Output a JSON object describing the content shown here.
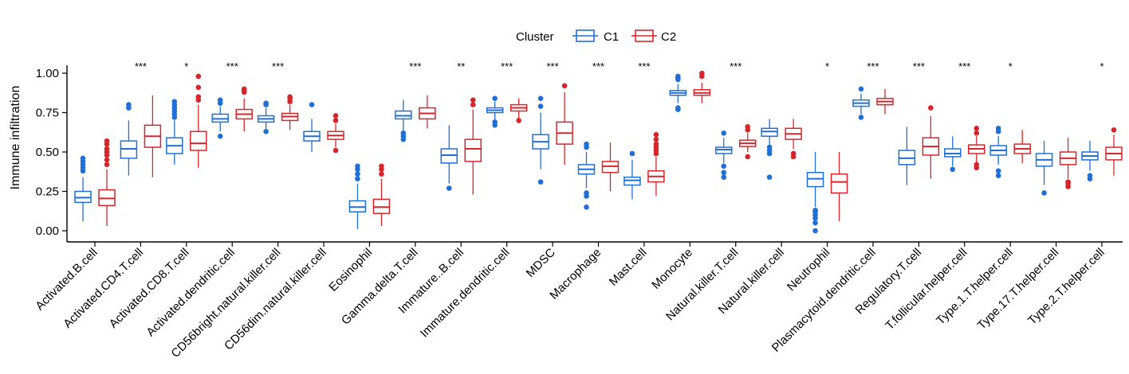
{
  "chart_data": {
    "type": "boxplot",
    "title": "",
    "xlabel": "",
    "ylabel": "Immune infiltration",
    "ylim": [
      0,
      1.05
    ],
    "yticks": [
      "0.00",
      "0.25",
      "0.50",
      "0.75",
      "1.00"
    ],
    "yticks_values": [
      0,
      0.25,
      0.5,
      0.75,
      1.0
    ],
    "legend": {
      "title": "Cluster",
      "position": "top-center",
      "entries": [
        "C1",
        "C2"
      ]
    },
    "colors": {
      "C1": "#1f6fd6",
      "C2": "#d7262b"
    },
    "categories": [
      "Activated.B.cell",
      "Activated.CD4.T.cell",
      "Activated.CD8.T.cell",
      "Activated.dendritic.cell",
      "CD56bright.natural.killer.cell",
      "CD56dim.natural.killer.cell",
      "Eosinophil",
      "Gamma.delta.T.cell",
      "Immature..B.cell",
      "Immature.dendritic.cell",
      "MDSC",
      "Macrophage",
      "Mast.cell",
      "Monocyte",
      "Natural.killer.T.cell",
      "Natural.killer.cell",
      "Neutrophil",
      "Plasmacytoid.dendritic.cell",
      "Regulatory.T.cell",
      "T.follicular.helper.cell",
      "Type.1.T.helper.cell",
      "Type.17.T.helper.cell",
      "Type.2.T.helper.cell"
    ],
    "significance": [
      "",
      "***",
      "*",
      "***",
      "***",
      "",
      "",
      "***",
      "**",
      "***",
      "***",
      "***",
      "***",
      "",
      "***",
      "",
      "*",
      "***",
      "***",
      "***",
      "*",
      "",
      "*"
    ],
    "series": [
      {
        "name": "C1",
        "boxes": [
          {
            "min": 0.06,
            "q1": 0.18,
            "median": 0.21,
            "q3": 0.25,
            "max": 0.34,
            "outliers": [
              0.38,
              0.4,
              0.42,
              0.44,
              0.46
            ]
          },
          {
            "min": 0.35,
            "q1": 0.46,
            "median": 0.52,
            "q3": 0.57,
            "max": 0.7,
            "outliers": [
              0.78,
              0.8
            ]
          },
          {
            "min": 0.42,
            "q1": 0.49,
            "median": 0.54,
            "q3": 0.59,
            "max": 0.7,
            "outliers": [
              0.72,
              0.74,
              0.76,
              0.78,
              0.8,
              0.82
            ]
          },
          {
            "min": 0.63,
            "q1": 0.69,
            "median": 0.71,
            "q3": 0.74,
            "max": 0.79,
            "outliers": [
              0.6,
              0.81,
              0.83
            ]
          },
          {
            "min": 0.64,
            "q1": 0.69,
            "median": 0.71,
            "q3": 0.73,
            "max": 0.78,
            "outliers": [
              0.63,
              0.8,
              0.81
            ]
          },
          {
            "min": 0.5,
            "q1": 0.57,
            "median": 0.6,
            "q3": 0.63,
            "max": 0.71,
            "outliers": [
              0.8
            ]
          },
          {
            "min": 0.01,
            "q1": 0.12,
            "median": 0.15,
            "q3": 0.19,
            "max": 0.3,
            "outliers": [
              0.33,
              0.36,
              0.39,
              0.41
            ]
          },
          {
            "min": 0.63,
            "q1": 0.71,
            "median": 0.73,
            "q3": 0.76,
            "max": 0.83,
            "outliers": [
              0.58,
              0.6,
              0.62
            ]
          },
          {
            "min": 0.3,
            "q1": 0.43,
            "median": 0.48,
            "q3": 0.52,
            "max": 0.67,
            "outliers": [
              0.27
            ]
          },
          {
            "min": 0.7,
            "q1": 0.75,
            "median": 0.765,
            "q3": 0.78,
            "max": 0.82,
            "outliers": [
              0.67,
              0.69,
              0.84
            ]
          },
          {
            "min": 0.39,
            "q1": 0.52,
            "median": 0.565,
            "q3": 0.61,
            "max": 0.75,
            "outliers": [
              0.31,
              0.79,
              0.84
            ]
          },
          {
            "min": 0.27,
            "q1": 0.36,
            "median": 0.39,
            "q3": 0.42,
            "max": 0.5,
            "outliers": [
              0.15,
              0.22,
              0.24,
              0.53,
              0.55
            ]
          },
          {
            "min": 0.2,
            "q1": 0.29,
            "median": 0.32,
            "q3": 0.34,
            "max": 0.45,
            "outliers": [
              0.49
            ]
          },
          {
            "min": 0.81,
            "q1": 0.86,
            "median": 0.875,
            "q3": 0.89,
            "max": 0.93,
            "outliers": [
              0.77,
              0.78,
              0.96,
              0.97,
              0.98
            ]
          },
          {
            "min": 0.43,
            "q1": 0.49,
            "median": 0.515,
            "q3": 0.53,
            "max": 0.59,
            "outliers": [
              0.34,
              0.37,
              0.41,
              0.62
            ]
          },
          {
            "min": 0.54,
            "q1": 0.6,
            "median": 0.63,
            "q3": 0.65,
            "max": 0.71,
            "outliers": [
              0.34,
              0.49,
              0.51,
              0.53
            ]
          },
          {
            "min": 0.15,
            "q1": 0.28,
            "median": 0.33,
            "q3": 0.37,
            "max": 0.5,
            "outliers": [
              0.0,
              0.05,
              0.08,
              0.1,
              0.12,
              0.13
            ]
          },
          {
            "min": 0.74,
            "q1": 0.79,
            "median": 0.81,
            "q3": 0.83,
            "max": 0.87,
            "outliers": [
              0.72,
              0.9
            ]
          },
          {
            "min": 0.29,
            "q1": 0.42,
            "median": 0.46,
            "q3": 0.51,
            "max": 0.66,
            "outliers": []
          },
          {
            "min": 0.41,
            "q1": 0.47,
            "median": 0.49,
            "q3": 0.52,
            "max": 0.6,
            "outliers": [
              0.39
            ]
          },
          {
            "min": 0.42,
            "q1": 0.48,
            "median": 0.51,
            "q3": 0.54,
            "max": 0.6,
            "outliers": [
              0.35,
              0.38,
              0.63,
              0.65
            ]
          },
          {
            "min": 0.29,
            "q1": 0.41,
            "median": 0.45,
            "q3": 0.49,
            "max": 0.57,
            "outliers": [
              0.24
            ]
          },
          {
            "min": 0.38,
            "q1": 0.45,
            "median": 0.475,
            "q3": 0.5,
            "max": 0.57,
            "outliers": [
              0.33,
              0.35
            ]
          }
        ]
      },
      {
        "name": "C2",
        "boxes": [
          {
            "min": 0.03,
            "q1": 0.16,
            "median": 0.205,
            "q3": 0.26,
            "max": 0.39,
            "outliers": [
              0.42,
              0.45,
              0.48,
              0.5,
              0.52,
              0.55,
              0.57
            ]
          },
          {
            "min": 0.34,
            "q1": 0.53,
            "median": 0.6,
            "q3": 0.67,
            "max": 0.86,
            "outliers": []
          },
          {
            "min": 0.4,
            "q1": 0.51,
            "median": 0.555,
            "q3": 0.63,
            "max": 0.8,
            "outliers": [
              0.83,
              0.85,
              0.91,
              0.98
            ]
          },
          {
            "min": 0.63,
            "q1": 0.71,
            "median": 0.74,
            "q3": 0.77,
            "max": 0.84,
            "outliers": [
              0.88,
              0.89,
              0.9
            ]
          },
          {
            "min": 0.64,
            "q1": 0.7,
            "median": 0.725,
            "q3": 0.745,
            "max": 0.8,
            "outliers": [
              0.82,
              0.84,
              0.85
            ]
          },
          {
            "min": 0.53,
            "q1": 0.58,
            "median": 0.605,
            "q3": 0.63,
            "max": 0.68,
            "outliers": [
              0.51,
              0.7,
              0.73
            ]
          },
          {
            "min": 0.03,
            "q1": 0.11,
            "median": 0.15,
            "q3": 0.2,
            "max": 0.33,
            "outliers": [
              0.36,
              0.39,
              0.41
            ]
          },
          {
            "min": 0.65,
            "q1": 0.71,
            "median": 0.745,
            "q3": 0.78,
            "max": 0.86,
            "outliers": []
          },
          {
            "min": 0.23,
            "q1": 0.44,
            "median": 0.52,
            "q3": 0.58,
            "max": 0.77,
            "outliers": [
              0.8,
              0.83
            ]
          },
          {
            "min": 0.71,
            "q1": 0.76,
            "median": 0.78,
            "q3": 0.8,
            "max": 0.84,
            "outliers": [
              0.7
            ]
          },
          {
            "min": 0.42,
            "q1": 0.55,
            "median": 0.62,
            "q3": 0.69,
            "max": 0.88,
            "outliers": [
              0.92
            ]
          },
          {
            "min": 0.25,
            "q1": 0.37,
            "median": 0.41,
            "q3": 0.44,
            "max": 0.56,
            "outliers": []
          },
          {
            "min": 0.22,
            "q1": 0.31,
            "median": 0.345,
            "q3": 0.38,
            "max": 0.47,
            "outliers": [
              0.49,
              0.51,
              0.53,
              0.55,
              0.58,
              0.61
            ]
          },
          {
            "min": 0.81,
            "q1": 0.86,
            "median": 0.875,
            "q3": 0.895,
            "max": 0.94,
            "outliers": [
              0.98,
              1.0
            ]
          },
          {
            "min": 0.5,
            "q1": 0.535,
            "median": 0.555,
            "q3": 0.575,
            "max": 0.62,
            "outliers": [
              0.47,
              0.64,
              0.66
            ]
          },
          {
            "min": 0.52,
            "q1": 0.58,
            "median": 0.615,
            "q3": 0.65,
            "max": 0.71,
            "outliers": [
              0.47,
              0.49
            ]
          },
          {
            "min": 0.06,
            "q1": 0.24,
            "median": 0.31,
            "q3": 0.36,
            "max": 0.5,
            "outliers": []
          },
          {
            "min": 0.74,
            "q1": 0.8,
            "median": 0.82,
            "q3": 0.84,
            "max": 0.9,
            "outliers": []
          },
          {
            "min": 0.33,
            "q1": 0.48,
            "median": 0.535,
            "q3": 0.59,
            "max": 0.73,
            "outliers": [
              0.78
            ]
          },
          {
            "min": 0.43,
            "q1": 0.49,
            "median": 0.52,
            "q3": 0.545,
            "max": 0.6,
            "outliers": [
              0.4,
              0.42,
              0.62,
              0.65
            ]
          },
          {
            "min": 0.43,
            "q1": 0.49,
            "median": 0.52,
            "q3": 0.55,
            "max": 0.64,
            "outliers": []
          },
          {
            "min": 0.33,
            "q1": 0.42,
            "median": 0.46,
            "q3": 0.5,
            "max": 0.59,
            "outliers": [
              0.28,
              0.3,
              0.31
            ]
          },
          {
            "min": 0.35,
            "q1": 0.45,
            "median": 0.49,
            "q3": 0.53,
            "max": 0.61,
            "outliers": [
              0.64
            ]
          }
        ]
      }
    ]
  }
}
